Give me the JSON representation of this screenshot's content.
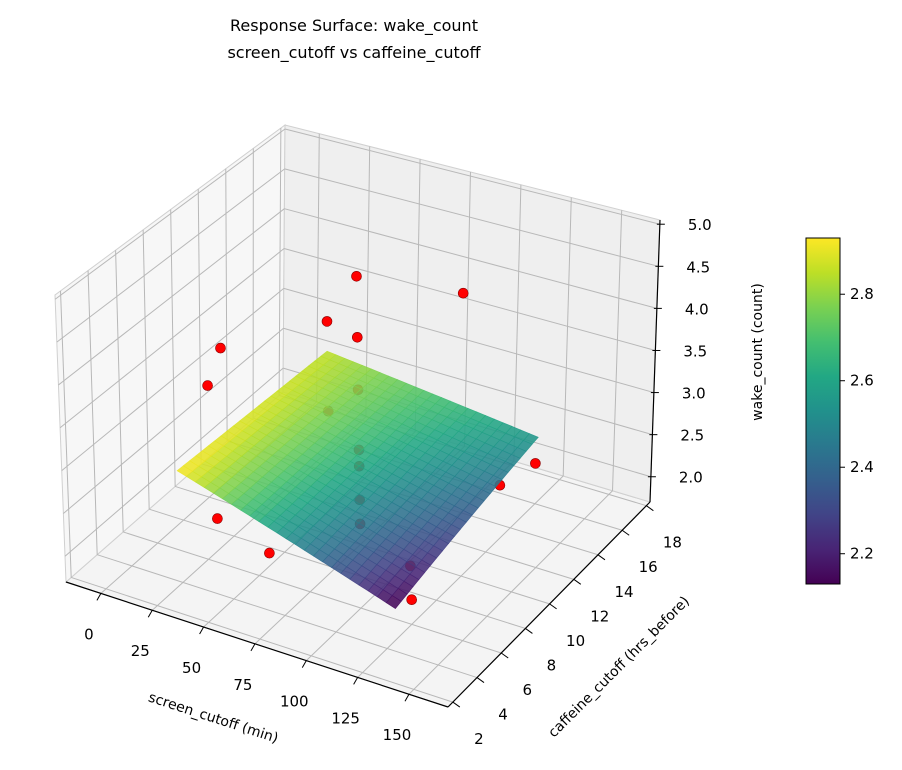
{
  "chart_data": {
    "type": "surface3d+scatter",
    "title": [
      "Response Surface: wake_count",
      "screen_cutoff vs caffeine_cutoff"
    ],
    "xlabel": "screen_cutoff (min)",
    "ylabel": "caffeine_cutoff (hrs_before)",
    "zlabel": "wake_count (count)",
    "xlim": [
      -17,
      169
    ],
    "ylim": [
      1.6,
      18.3
    ],
    "zlim": [
      1.7,
      5.05
    ],
    "xticks": [
      "0",
      "25",
      "50",
      "75",
      "100",
      "125",
      "150"
    ],
    "yticks": [
      "2",
      "4",
      "6",
      "8",
      "10",
      "12",
      "14",
      "16",
      "18"
    ],
    "zticks": [
      "2.0",
      "2.5",
      "3.0",
      "3.5",
      "4.0",
      "4.5",
      "5.0"
    ],
    "grid": true,
    "surface": {
      "colormap": "viridis",
      "x": [
        22,
        128
      ],
      "y": [
        4.3,
        15.7
      ],
      "z": [
        [
          2.93,
          2.12
        ],
        [
          2.85,
          2.55
        ]
      ]
    },
    "points": {
      "color": "#ff0000",
      "x": [
        75,
        75,
        75,
        75,
        75,
        75,
        75,
        128,
        60,
        60,
        0,
        0,
        150,
        145,
        30,
        75,
        135,
        135
      ],
      "y": [
        10,
        10,
        10,
        10,
        10,
        10,
        10,
        10,
        10,
        10,
        11,
        10,
        12,
        10,
        6,
        3,
        4.5,
        4.5
      ],
      "z": [
        4.82,
        4.11,
        3.5,
        2.8,
        2.61,
        2.22,
        1.94,
        4.94,
        4.2,
        3.15,
        3.36,
        3.04,
        2.89,
        2.87,
        2.21,
        2.53,
        2.61,
        2.24
      ]
    },
    "colorbar": {
      "range": [
        2.13,
        2.93
      ],
      "ticks": [
        "2.2",
        "2.4",
        "2.6",
        "2.8"
      ],
      "placement": "right"
    }
  }
}
